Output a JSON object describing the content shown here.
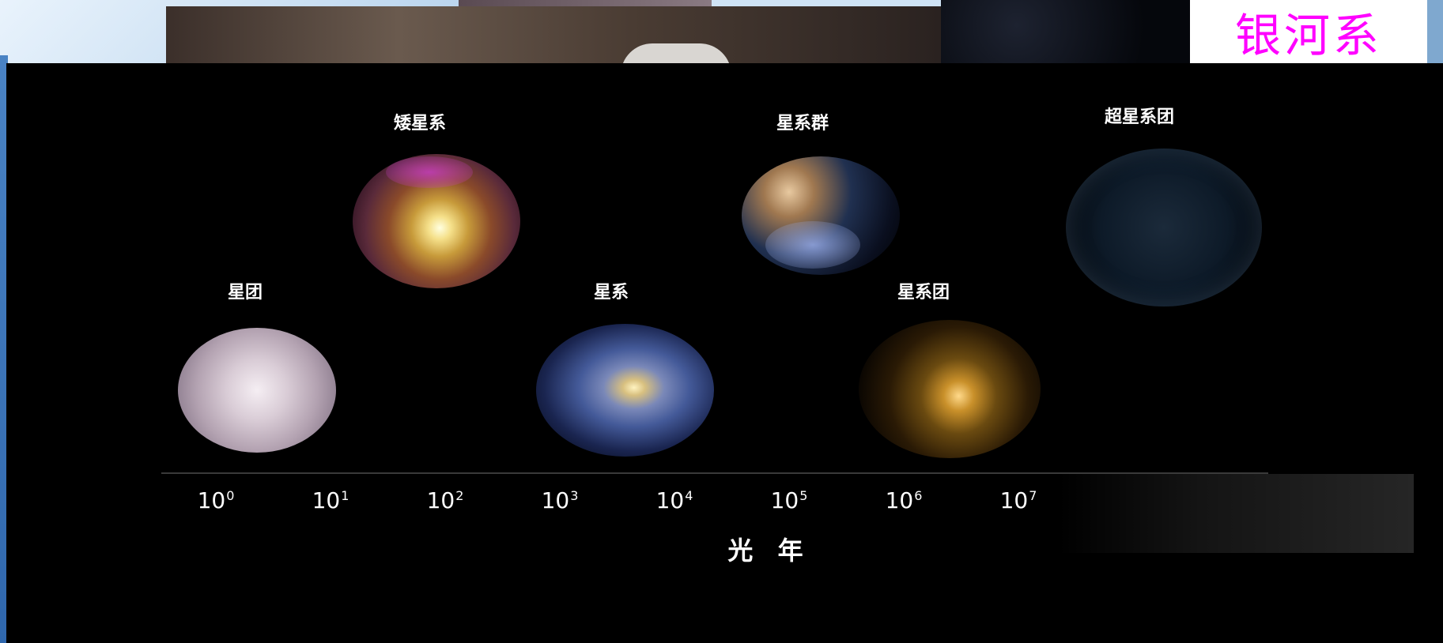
{
  "slide": {
    "title": "银河系"
  },
  "figure": {
    "objects": [
      {
        "key": "star-cluster",
        "label": "星团"
      },
      {
        "key": "dwarf-galaxy",
        "label": "矮星系"
      },
      {
        "key": "galaxy",
        "label": "星系"
      },
      {
        "key": "galaxy-group",
        "label": "星系群"
      },
      {
        "key": "galaxy-cluster",
        "label": "星系团"
      },
      {
        "key": "supercluster",
        "label": "超星系团"
      }
    ],
    "scale": {
      "base": "10",
      "exponents": [
        "0",
        "1",
        "2",
        "3",
        "4",
        "5",
        "6",
        "7"
      ],
      "unit": "光 年"
    }
  },
  "colors": {
    "title": "#ff00ff",
    "figure_bg": "#000000",
    "text": "#ffffff"
  }
}
